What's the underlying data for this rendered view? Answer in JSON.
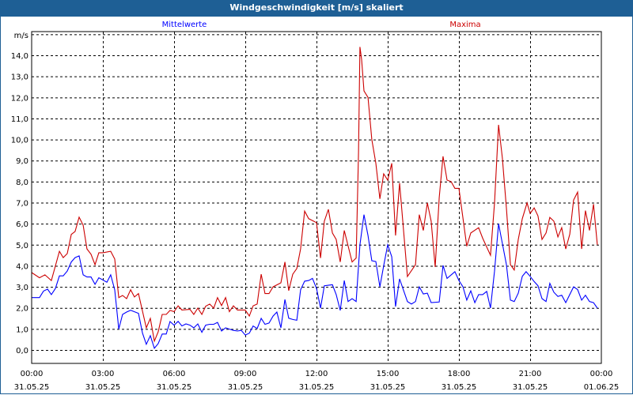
{
  "window": {
    "title": "Windgeschwindigkeit [m/s] skaliert"
  },
  "chart_data": {
    "type": "line",
    "title": "Windgeschwindigkeit [m/s] skaliert",
    "ylabel": "m/s",
    "xlabel": "",
    "ylim": [
      -0.6,
      15.1
    ],
    "xlim_hours": [
      0,
      24
    ],
    "yticks": [
      "0,0",
      "1,0",
      "2,0",
      "3,0",
      "4,0",
      "5,0",
      "6,0",
      "7,0",
      "8,0",
      "9,0",
      "10,0",
      "11,0",
      "12,0",
      "13,0",
      "14,0"
    ],
    "ytick_values": [
      0,
      1,
      2,
      3,
      4,
      5,
      6,
      7,
      8,
      9,
      10,
      11,
      12,
      13,
      14
    ],
    "xticks": [
      {
        "time": "00:00",
        "date": "31.05.25",
        "hour": 0
      },
      {
        "time": "03:00",
        "date": "31.05.25",
        "hour": 3
      },
      {
        "time": "06:00",
        "date": "31.05.25",
        "hour": 6
      },
      {
        "time": "09:00",
        "date": "31.05.25",
        "hour": 9
      },
      {
        "time": "12:00",
        "date": "31.05.25",
        "hour": 12
      },
      {
        "time": "15:00",
        "date": "31.05.25",
        "hour": 15
      },
      {
        "time": "18:00",
        "date": "31.05.25",
        "hour": 18
      },
      {
        "time": "21:00",
        "date": "31.05.25",
        "hour": 21
      },
      {
        "time": "00:00",
        "date": "01.06.25",
        "hour": 24
      }
    ],
    "grid": true,
    "legend_placement": "top",
    "series": [
      {
        "name": "Mittelwerte",
        "color": "#0000ff",
        "points": [
          [
            0,
            2.49
          ],
          [
            0.33,
            2.49
          ],
          [
            0.5,
            2.8
          ],
          [
            0.67,
            2.89
          ],
          [
            0.83,
            2.63
          ],
          [
            1,
            2.92
          ],
          [
            1.17,
            3.52
          ],
          [
            1.33,
            3.52
          ],
          [
            1.5,
            3.75
          ],
          [
            1.67,
            4.18
          ],
          [
            1.83,
            4.39
          ],
          [
            2,
            4.47
          ],
          [
            2.17,
            3.57
          ],
          [
            2.33,
            3.47
          ],
          [
            2.5,
            3.47
          ],
          [
            2.67,
            3.12
          ],
          [
            2.83,
            3.43
          ],
          [
            3.17,
            3.22
          ],
          [
            3.33,
            3.57
          ],
          [
            3.5,
            2.86
          ],
          [
            3.67,
            0.99
          ],
          [
            3.83,
            1.69
          ],
          [
            4,
            1.8
          ],
          [
            4.17,
            1.89
          ],
          [
            4.5,
            1.74
          ],
          [
            4.67,
            0.8
          ],
          [
            4.83,
            0.27
          ],
          [
            5,
            0.68
          ],
          [
            5.17,
            0.08
          ],
          [
            5.33,
            0.3
          ],
          [
            5.5,
            0.76
          ],
          [
            5.67,
            0.76
          ],
          [
            5.83,
            1.35
          ],
          [
            6,
            1.18
          ],
          [
            6.17,
            1.36
          ],
          [
            6.33,
            1.14
          ],
          [
            6.5,
            1.24
          ],
          [
            6.67,
            1.18
          ],
          [
            6.83,
            1.05
          ],
          [
            7,
            1.24
          ],
          [
            7.17,
            0.84
          ],
          [
            7.33,
            1.18
          ],
          [
            7.5,
            1.22
          ],
          [
            7.67,
            1.22
          ],
          [
            7.83,
            1.31
          ],
          [
            8,
            0.9
          ],
          [
            8.17,
            1.05
          ],
          [
            8.33,
            0.99
          ],
          [
            8.5,
            0.93
          ],
          [
            8.67,
            0.9
          ],
          [
            8.83,
            0.93
          ],
          [
            9,
            0.71
          ],
          [
            9.17,
            0.8
          ],
          [
            9.33,
            1.14
          ],
          [
            9.5,
            1.02
          ],
          [
            9.67,
            1.5
          ],
          [
            9.83,
            1.22
          ],
          [
            10,
            1.28
          ],
          [
            10.17,
            1.61
          ],
          [
            10.33,
            1.8
          ],
          [
            10.5,
            1.05
          ],
          [
            10.67,
            2.4
          ],
          [
            10.83,
            1.51
          ],
          [
            11,
            1.45
          ],
          [
            11.17,
            1.41
          ],
          [
            11.33,
            2.86
          ],
          [
            11.5,
            3.27
          ],
          [
            11.67,
            3.3
          ],
          [
            11.83,
            3.4
          ],
          [
            12,
            2.93
          ],
          [
            12.17,
            1.99
          ],
          [
            12.33,
            3.05
          ],
          [
            12.67,
            3.1
          ],
          [
            12.83,
            2.63
          ],
          [
            13,
            1.88
          ],
          [
            13.17,
            3.3
          ],
          [
            13.33,
            2.3
          ],
          [
            13.5,
            2.44
          ],
          [
            13.67,
            2.3
          ],
          [
            13.83,
            5.0
          ],
          [
            14,
            6.43
          ],
          [
            14.17,
            5.44
          ],
          [
            14.33,
            4.24
          ],
          [
            14.5,
            4.2
          ],
          [
            14.67,
            3.0
          ],
          [
            14.83,
            4.0
          ],
          [
            15,
            5.0
          ],
          [
            15.17,
            4.43
          ],
          [
            15.33,
            2.06
          ],
          [
            15.5,
            3.38
          ],
          [
            15.83,
            2.3
          ],
          [
            16,
            2.18
          ],
          [
            16.17,
            2.3
          ],
          [
            16.33,
            3.0
          ],
          [
            16.5,
            2.66
          ],
          [
            16.67,
            2.7
          ],
          [
            16.83,
            2.25
          ],
          [
            17.17,
            2.28
          ],
          [
            17.33,
            4.02
          ],
          [
            17.5,
            3.4
          ],
          [
            17.83,
            3.72
          ],
          [
            18,
            3.3
          ],
          [
            18.17,
            3.0
          ],
          [
            18.33,
            2.37
          ],
          [
            18.5,
            2.81
          ],
          [
            18.67,
            2.25
          ],
          [
            18.83,
            2.63
          ],
          [
            19,
            2.63
          ],
          [
            19.17,
            2.78
          ],
          [
            19.33,
            1.99
          ],
          [
            19.5,
            3.75
          ],
          [
            19.67,
            6.0
          ],
          [
            19.83,
            5.06
          ],
          [
            20,
            4.06
          ],
          [
            20.17,
            2.37
          ],
          [
            20.33,
            2.3
          ],
          [
            20.5,
            2.7
          ],
          [
            20.67,
            3.5
          ],
          [
            20.83,
            3.72
          ],
          [
            21,
            3.5
          ],
          [
            21.17,
            3.25
          ],
          [
            21.33,
            3.05
          ],
          [
            21.5,
            2.44
          ],
          [
            21.67,
            2.3
          ],
          [
            21.83,
            3.17
          ],
          [
            22,
            2.74
          ],
          [
            22.17,
            2.54
          ],
          [
            22.33,
            2.6
          ],
          [
            22.5,
            2.25
          ],
          [
            22.83,
            3.0
          ],
          [
            23,
            2.87
          ],
          [
            23.17,
            2.37
          ],
          [
            23.33,
            2.6
          ],
          [
            23.5,
            2.3
          ],
          [
            23.67,
            2.25
          ],
          [
            23.83,
            1.99
          ]
        ]
      },
      {
        "name": "Maxima",
        "color": "#cc0000",
        "points": [
          [
            0,
            3.68
          ],
          [
            0.33,
            3.43
          ],
          [
            0.56,
            3.57
          ],
          [
            0.83,
            3.3
          ],
          [
            1.17,
            4.69
          ],
          [
            1.33,
            4.39
          ],
          [
            1.5,
            4.58
          ],
          [
            1.67,
            5.49
          ],
          [
            1.83,
            5.63
          ],
          [
            2,
            6.31
          ],
          [
            2.17,
            5.93
          ],
          [
            2.33,
            4.8
          ],
          [
            2.5,
            4.55
          ],
          [
            2.67,
            4.05
          ],
          [
            2.83,
            4.62
          ],
          [
            3,
            4.62
          ],
          [
            3.33,
            4.69
          ],
          [
            3.5,
            4.32
          ],
          [
            3.67,
            2.49
          ],
          [
            3.83,
            2.59
          ],
          [
            4,
            2.44
          ],
          [
            4.17,
            2.86
          ],
          [
            4.33,
            2.52
          ],
          [
            4.5,
            2.68
          ],
          [
            4.83,
            1.05
          ],
          [
            5,
            1.5
          ],
          [
            5.17,
            0.42
          ],
          [
            5.33,
            0.86
          ],
          [
            5.5,
            1.69
          ],
          [
            5.67,
            1.69
          ],
          [
            5.83,
            1.88
          ],
          [
            6,
            1.82
          ],
          [
            6.17,
            2.1
          ],
          [
            6.33,
            1.9
          ],
          [
            6.67,
            1.93
          ],
          [
            6.83,
            1.69
          ],
          [
            7,
            1.99
          ],
          [
            7.17,
            1.69
          ],
          [
            7.33,
            2.08
          ],
          [
            7.5,
            2.18
          ],
          [
            7.67,
            1.99
          ],
          [
            7.83,
            2.49
          ],
          [
            8,
            2.11
          ],
          [
            8.17,
            2.49
          ],
          [
            8.33,
            1.82
          ],
          [
            8.5,
            2.1
          ],
          [
            8.67,
            1.9
          ],
          [
            9,
            1.9
          ],
          [
            9.17,
            1.61
          ],
          [
            9.33,
            2.1
          ],
          [
            9.5,
            2.18
          ],
          [
            9.67,
            3.6
          ],
          [
            9.83,
            2.68
          ],
          [
            10,
            2.68
          ],
          [
            10.17,
            3.0
          ],
          [
            10.5,
            3.19
          ],
          [
            10.67,
            4.18
          ],
          [
            10.83,
            2.82
          ],
          [
            11,
            3.6
          ],
          [
            11.17,
            3.87
          ],
          [
            11.33,
            4.8
          ],
          [
            11.5,
            6.6
          ],
          [
            11.67,
            6.24
          ],
          [
            12,
            6.05
          ],
          [
            12.17,
            4.37
          ],
          [
            12.33,
            6.12
          ],
          [
            12.5,
            6.68
          ],
          [
            12.67,
            5.56
          ],
          [
            12.83,
            5.25
          ],
          [
            13,
            4.18
          ],
          [
            13.17,
            5.68
          ],
          [
            13.5,
            4.18
          ],
          [
            13.67,
            4.37
          ],
          [
            13.73,
            7.37
          ],
          [
            13.77,
            9.38
          ],
          [
            13.83,
            14.4
          ],
          [
            13.9,
            13.81
          ],
          [
            14,
            12.31
          ],
          [
            14.17,
            12.0
          ],
          [
            14.33,
            10.0
          ],
          [
            14.5,
            8.87
          ],
          [
            14.67,
            7.18
          ],
          [
            14.83,
            8.37
          ],
          [
            15,
            8.07
          ],
          [
            15.17,
            8.87
          ],
          [
            15.33,
            5.44
          ],
          [
            15.5,
            7.93
          ],
          [
            15.83,
            3.49
          ],
          [
            16.17,
            4.05
          ],
          [
            16.33,
            6.43
          ],
          [
            16.5,
            5.68
          ],
          [
            16.67,
            6.99
          ],
          [
            16.83,
            6.12
          ],
          [
            17,
            3.94
          ],
          [
            17.17,
            7.24
          ],
          [
            17.33,
            9.2
          ],
          [
            17.5,
            8.07
          ],
          [
            17.67,
            8.0
          ],
          [
            17.83,
            7.68
          ],
          [
            18,
            7.68
          ],
          [
            18.33,
            4.93
          ],
          [
            18.5,
            5.56
          ],
          [
            18.83,
            5.81
          ],
          [
            19,
            5.31
          ],
          [
            19.33,
            4.5
          ],
          [
            19.5,
            6.99
          ],
          [
            19.67,
            10.7
          ],
          [
            19.83,
            9.12
          ],
          [
            20,
            6.75
          ],
          [
            20.17,
            4.05
          ],
          [
            20.33,
            3.8
          ],
          [
            20.5,
            5.25
          ],
          [
            20.67,
            6.24
          ],
          [
            20.87,
            6.99
          ],
          [
            21,
            6.49
          ],
          [
            21.17,
            6.75
          ],
          [
            21.33,
            6.37
          ],
          [
            21.5,
            5.25
          ],
          [
            21.67,
            5.56
          ],
          [
            21.83,
            6.3
          ],
          [
            22,
            6.12
          ],
          [
            22.17,
            5.37
          ],
          [
            22.33,
            5.81
          ],
          [
            22.5,
            4.8
          ],
          [
            22.67,
            5.5
          ],
          [
            22.83,
            7.12
          ],
          [
            23,
            7.5
          ],
          [
            23.17,
            4.8
          ],
          [
            23.33,
            6.62
          ],
          [
            23.5,
            5.68
          ],
          [
            23.67,
            6.93
          ],
          [
            23.83,
            5.0
          ]
        ]
      }
    ]
  }
}
